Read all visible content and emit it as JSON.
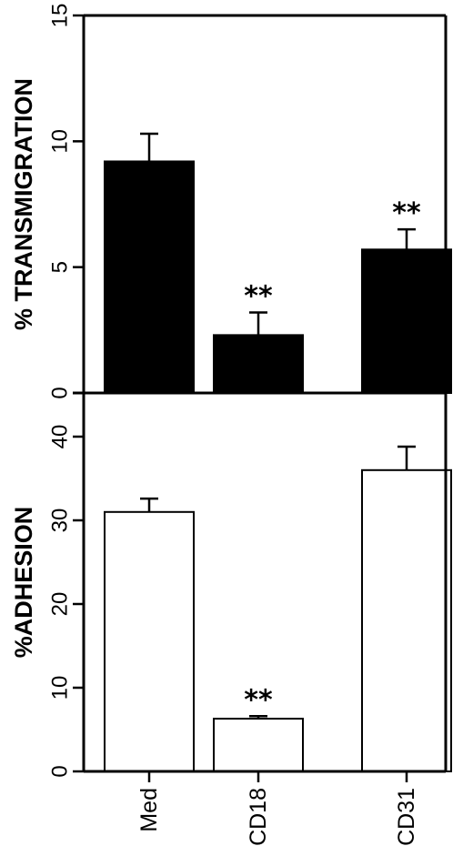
{
  "chart_data": [
    {
      "type": "bar",
      "panel": "top",
      "categories": [
        "Med",
        "CD18",
        "CD31"
      ],
      "values": [
        9.2,
        2.3,
        5.7
      ],
      "errors": [
        1.1,
        0.9,
        0.8
      ],
      "significance": [
        "",
        "**",
        "**"
      ],
      "ylabel": "% TRANSMIGRATION",
      "ylim": [
        0,
        15
      ],
      "yticks": [
        0,
        5,
        10,
        15
      ],
      "bar_color": "#000000",
      "grid": false
    },
    {
      "type": "bar",
      "panel": "bottom",
      "categories": [
        "Med",
        "CD18",
        "CD31"
      ],
      "values": [
        31,
        6.3,
        36
      ],
      "errors": [
        1.6,
        0.3,
        2.8
      ],
      "significance": [
        "",
        "**",
        ""
      ],
      "ylabel": "%ADHESION",
      "ylim": [
        0,
        46
      ],
      "yticks": [
        0,
        10,
        20,
        30,
        40
      ],
      "bar_color": "#ffffff",
      "grid": false
    }
  ]
}
